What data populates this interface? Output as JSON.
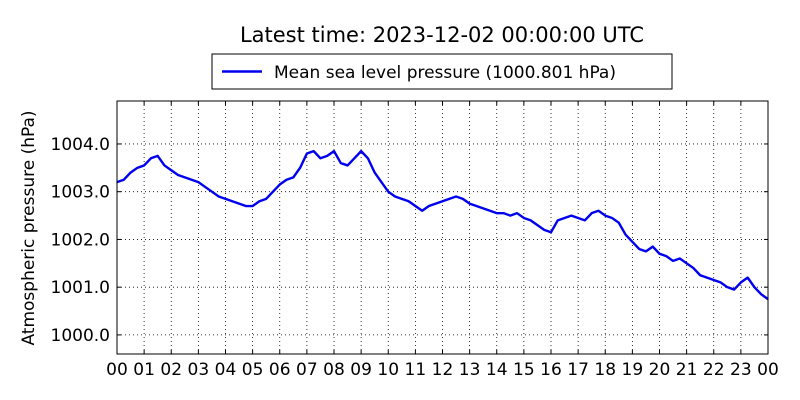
{
  "chart_data": {
    "type": "line",
    "title": "Latest time: 2023-12-02 00:00:00 UTC",
    "ylabel": "Atmospheric pressure (hPa)",
    "xlabel": "",
    "x_ticks": [
      "00",
      "01",
      "02",
      "03",
      "04",
      "05",
      "06",
      "07",
      "08",
      "09",
      "10",
      "11",
      "12",
      "13",
      "14",
      "15",
      "16",
      "17",
      "18",
      "19",
      "20",
      "21",
      "22",
      "23",
      "00"
    ],
    "xlim": [
      0,
      24
    ],
    "ylim": [
      999.6,
      1004.9
    ],
    "y_ticks": [
      1000.0,
      1001.0,
      1002.0,
      1003.0,
      1004.0
    ],
    "y_tick_labels": [
      "1000.0",
      "1001.0",
      "1002.0",
      "1003.0",
      "1004.0"
    ],
    "grid": true,
    "legend_position": "top-center",
    "series": [
      {
        "name": "Mean sea level pressure (1000.801 hPa)",
        "color": "#0000ee",
        "x": [
          0,
          0.25,
          0.5,
          0.75,
          1,
          1.25,
          1.5,
          1.75,
          2,
          2.25,
          2.5,
          2.75,
          3,
          3.25,
          3.5,
          3.75,
          4,
          4.25,
          4.5,
          4.75,
          5,
          5.25,
          5.5,
          5.75,
          6,
          6.25,
          6.5,
          6.75,
          7,
          7.25,
          7.5,
          7.75,
          8,
          8.25,
          8.5,
          8.75,
          9,
          9.25,
          9.5,
          9.75,
          10,
          10.25,
          10.5,
          10.75,
          11,
          11.25,
          11.5,
          11.75,
          12,
          12.25,
          12.5,
          12.75,
          13,
          13.25,
          13.5,
          13.75,
          14,
          14.25,
          14.5,
          14.75,
          15,
          15.25,
          15.5,
          15.75,
          16,
          16.25,
          16.5,
          16.75,
          17,
          17.25,
          17.5,
          17.75,
          18,
          18.25,
          18.5,
          18.75,
          19,
          19.25,
          19.5,
          19.75,
          20,
          20.25,
          20.5,
          20.75,
          21,
          21.25,
          21.5,
          21.75,
          22,
          22.25,
          22.5,
          22.75,
          23,
          23.25,
          23.5,
          23.75,
          24
        ],
        "y": [
          1003.2,
          1003.25,
          1003.4,
          1003.5,
          1003.55,
          1003.7,
          1003.75,
          1003.55,
          1003.45,
          1003.35,
          1003.3,
          1003.25,
          1003.2,
          1003.1,
          1003.0,
          1002.9,
          1002.85,
          1002.8,
          1002.75,
          1002.7,
          1002.7,
          1002.8,
          1002.85,
          1003.0,
          1003.15,
          1003.25,
          1003.3,
          1003.5,
          1003.8,
          1003.85,
          1003.7,
          1003.75,
          1003.85,
          1003.6,
          1003.55,
          1003.7,
          1003.85,
          1003.7,
          1003.4,
          1003.2,
          1003.0,
          1002.9,
          1002.85,
          1002.8,
          1002.7,
          1002.6,
          1002.7,
          1002.75,
          1002.8,
          1002.85,
          1002.9,
          1002.85,
          1002.75,
          1002.7,
          1002.65,
          1002.6,
          1002.55,
          1002.55,
          1002.5,
          1002.55,
          1002.45,
          1002.4,
          1002.3,
          1002.2,
          1002.15,
          1002.4,
          1002.45,
          1002.5,
          1002.45,
          1002.4,
          1002.55,
          1002.6,
          1002.5,
          1002.45,
          1002.35,
          1002.1,
          1001.95,
          1001.8,
          1001.75,
          1001.85,
          1001.7,
          1001.65,
          1001.55,
          1001.6,
          1001.5,
          1001.4,
          1001.25,
          1001.2,
          1001.15,
          1001.1,
          1001.0,
          1000.95,
          1001.1,
          1001.2,
          1001.0,
          1000.85,
          1000.75
        ]
      }
    ]
  }
}
